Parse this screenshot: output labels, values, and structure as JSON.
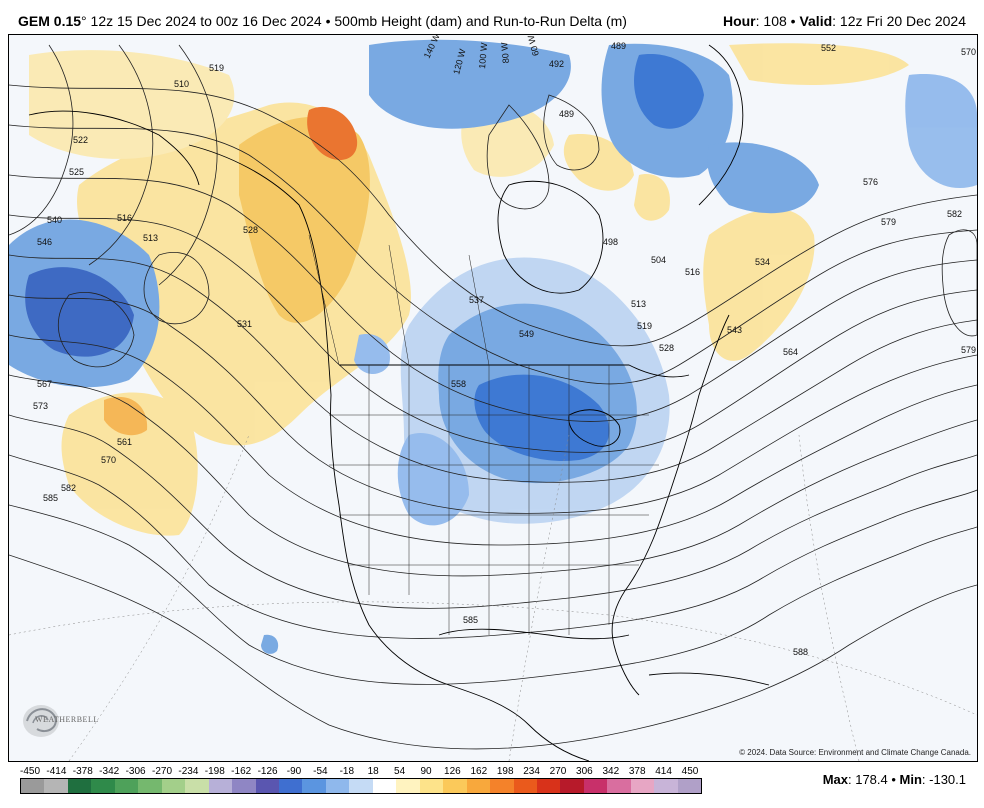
{
  "header": {
    "model": "GEM 0.15",
    "degree_symbol": "°",
    "run_info": "12z 15 Dec 2024 to 00z 16 Dec 2024 • 500mb Height (dam) and Run-to-Run Delta (m)",
    "hour_label": "Hour",
    "hour_value": ": 108 • ",
    "valid_label": "Valid",
    "valid_value": ": 12z Fri 20 Dec 2024"
  },
  "map": {
    "copyright": "© 2024. Data Source: Environment and Climate Change Canada.",
    "logo_text": "WEATHERBELL",
    "longitude_labels": [
      "140 W",
      "120 W",
      "100 W",
      "80 W",
      "60 W"
    ],
    "contour_labels": [
      "510",
      "519",
      "522",
      "525",
      "516",
      "513",
      "540",
      "546",
      "528",
      "531",
      "567",
      "573",
      "561",
      "570",
      "582",
      "585",
      "537",
      "549",
      "558",
      "585",
      "492",
      "489",
      "504",
      "513",
      "516",
      "519",
      "528",
      "534",
      "543",
      "564",
      "576",
      "579",
      "582",
      "570",
      "579",
      "588",
      "489",
      "498",
      "552"
    ],
    "delta_colors": {
      "strong_negative": "#2166c6",
      "moderate_negative": "#6fa3e0",
      "weak_negative": "#bcd4f2",
      "weak_positive": "#fbe9a0",
      "moderate_positive": "#f6c65a",
      "strong_positive": "#ea6a1f"
    }
  },
  "colorbar": {
    "ticks": [
      "-450",
      "-414",
      "-378",
      "-342",
      "-306",
      "-270",
      "-234",
      "-198",
      "-162",
      "-126",
      "-90",
      "-54",
      "-18",
      "18",
      "54",
      "90",
      "126",
      "162",
      "198",
      "234",
      "270",
      "306",
      "342",
      "378",
      "414",
      "450"
    ],
    "colors": [
      "#9a9a9a",
      "#b5b5b5",
      "#1f6f3f",
      "#2f8a4a",
      "#4ea15a",
      "#75b86e",
      "#a3cf8a",
      "#c9dfa8",
      "#b7b0d8",
      "#8f86c4",
      "#5a56b0",
      "#3f6fd0",
      "#5b95e0",
      "#8fb8ec",
      "#c5dbf5",
      "#ffffff",
      "#fff3c0",
      "#fde38a",
      "#fbc95a",
      "#f8a83c",
      "#f4822a",
      "#ea5a1c",
      "#d8321a",
      "#b71a2a",
      "#c8306a",
      "#d96e9f",
      "#e7a6c4",
      "#c8b4d8",
      "#b0a0c8"
    ],
    "max_label": "Max",
    "max_value": ": 178.4 • ",
    "min_label": "Min",
    "min_value": ": -130.1"
  }
}
